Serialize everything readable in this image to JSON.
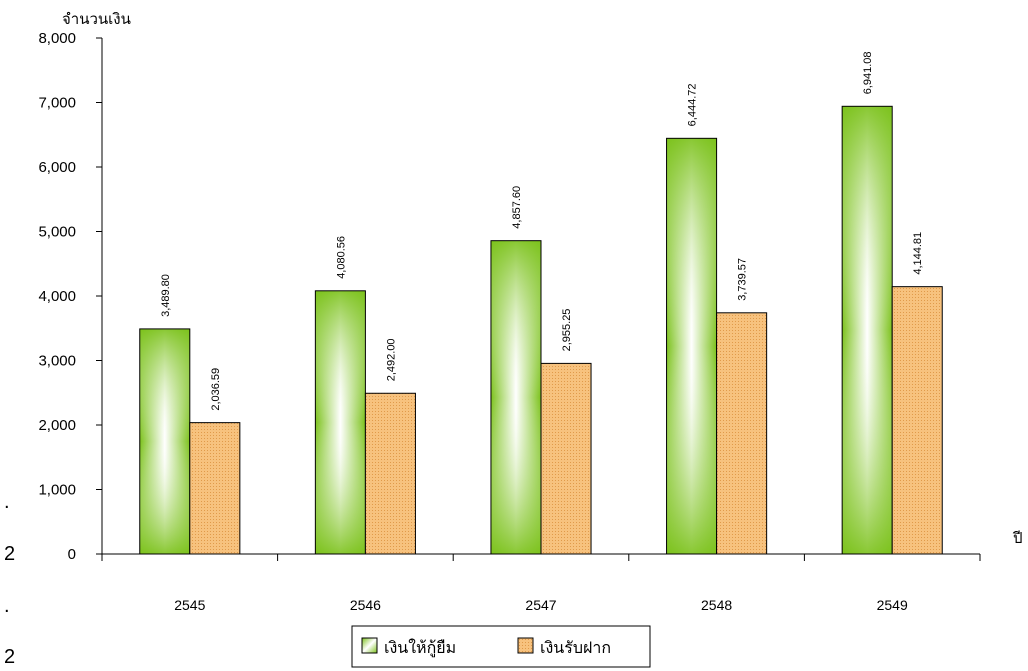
{
  "chart_data": {
    "type": "bar",
    "ylabel": "จำนวนเงิน",
    "xlabel": "ปี",
    "ylim": [
      0,
      8000
    ],
    "y_ticks": [
      "0",
      "1,000",
      "2,000",
      "3,000",
      "4,000",
      "5,000",
      "6,000",
      "7,000",
      "8,000"
    ],
    "categories": [
      "2545",
      "2546",
      "2547",
      "2548",
      "2549"
    ],
    "series": [
      {
        "name": "เงินให้กู้ยืม",
        "values": [
          3489.8,
          4080.56,
          4857.6,
          6444.72,
          6941.08
        ],
        "labels": [
          "3,489.80",
          "4,080.56",
          "4,857.60",
          "6,444.72",
          "6,941.08"
        ],
        "color": "#7fbf22"
      },
      {
        "name": "เงินรับฝาก",
        "values": [
          2036.59,
          2492.0,
          2955.25,
          3739.57,
          4144.81
        ],
        "labels": [
          "2,036.59",
          "2,492.00",
          "2,955.25",
          "3,739.57",
          "4,144.81"
        ],
        "color": "#f5b870"
      }
    ],
    "legend_position": "bottom-center",
    "grid": false
  },
  "page_margin_text": [
    ".",
    "2",
    ".",
    "2"
  ]
}
